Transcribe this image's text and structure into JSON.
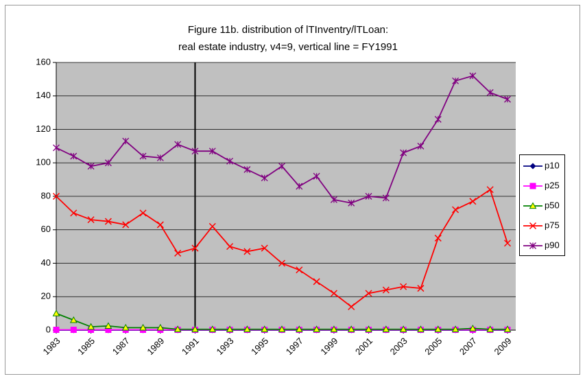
{
  "chart_data": {
    "type": "line",
    "title": [
      "Figure 11b. distribution of lTInventry/lTLoan:",
      "real estate industry, v4=9, vertical line = FY1991"
    ],
    "x": [
      1983,
      1984,
      1985,
      1986,
      1987,
      1988,
      1989,
      1990,
      1991,
      1992,
      1993,
      1994,
      1995,
      1996,
      1997,
      1998,
      1999,
      2000,
      2001,
      2002,
      2003,
      2004,
      2005,
      2006,
      2007,
      2008,
      2009
    ],
    "xlim": [
      1983,
      2009
    ],
    "xticks": [
      1983,
      1985,
      1987,
      1989,
      1991,
      1993,
      1995,
      1997,
      1999,
      2001,
      2003,
      2005,
      2007,
      2009
    ],
    "ylim": [
      0,
      160
    ],
    "yticks": [
      0,
      20,
      40,
      60,
      80,
      100,
      120,
      140,
      160
    ],
    "grid": true,
    "vline": 1991,
    "legend": "right",
    "series": [
      {
        "name": "p10",
        "color": "#000080",
        "marker": "diamond",
        "values": [
          0,
          0,
          0,
          0,
          0,
          0,
          0,
          0,
          0,
          0,
          0,
          0,
          0,
          0,
          0,
          0,
          0,
          0,
          0,
          0,
          0,
          0,
          0,
          0,
          0,
          0,
          0
        ]
      },
      {
        "name": "p25",
        "color": "#ff00ff",
        "marker": "square",
        "values": [
          0.2,
          0.2,
          0.2,
          0.2,
          0.2,
          0.2,
          0.2,
          0.2,
          0.2,
          0.2,
          0.2,
          0.2,
          0.2,
          0.2,
          0.2,
          0.2,
          0.2,
          0.2,
          0.2,
          0.2,
          0.2,
          0.2,
          0.2,
          0.2,
          0.2,
          0.2,
          0.2
        ]
      },
      {
        "name": "p50",
        "color": "#008000",
        "marker": "triangle",
        "values": [
          10,
          6,
          2,
          2.5,
          1.5,
          1.5,
          1.5,
          0.5,
          0.5,
          0.5,
          0.5,
          0.5,
          0.5,
          0.5,
          0.5,
          0.5,
          0.5,
          0.5,
          0.5,
          0.5,
          0.5,
          0.5,
          0.5,
          0.5,
          1,
          0.5,
          0.5
        ]
      },
      {
        "name": "p75",
        "color": "#ff0000",
        "marker": "x",
        "values": [
          80,
          70,
          66,
          65,
          63,
          70,
          63,
          46,
          49,
          62,
          50,
          47,
          49,
          40,
          36,
          29,
          22,
          14,
          22,
          24,
          26,
          25,
          55,
          72,
          77,
          84,
          52
        ]
      },
      {
        "name": "p90",
        "color": "#800080",
        "marker": "star",
        "values": [
          109,
          104,
          98,
          100,
          113,
          104,
          103,
          111,
          107,
          107,
          101,
          96,
          91,
          98,
          86,
          92,
          78,
          76,
          80,
          79,
          106,
          110,
          126,
          149,
          152,
          142,
          138
        ]
      }
    ]
  }
}
